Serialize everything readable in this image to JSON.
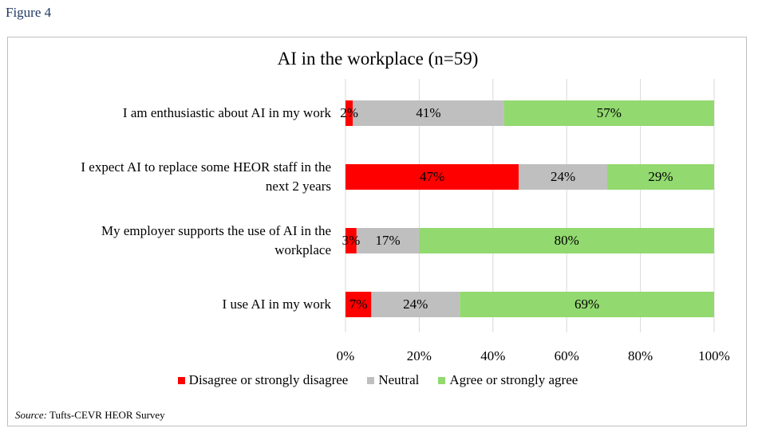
{
  "figure_label": "Figure 4",
  "source": {
    "prefix": "Source:",
    "text": " Tufts-CEVR HEOR Survey"
  },
  "chart_data": {
    "type": "bar",
    "orientation": "horizontal",
    "stacked": true,
    "title": "AI in the workplace (n=59)",
    "categories": [
      "I am enthusiastic about AI in my work",
      "I expect AI to replace some HEOR staff in the next 2 years",
      "My employer supports the use of AI in the workplace",
      "I use AI in my work"
    ],
    "category_lines": [
      [
        "I am enthusiastic about AI in my work"
      ],
      [
        "I expect AI to replace some HEOR staff in the",
        "next 2 years"
      ],
      [
        "My employer supports the use of AI in the",
        "workplace"
      ],
      [
        "I use AI in my work"
      ]
    ],
    "series": [
      {
        "name": "Disagree or strongly disagree",
        "color": "#ff0000",
        "values": [
          2,
          47,
          3,
          7
        ],
        "labels": [
          "2%",
          "47%",
          "3%",
          "7%"
        ]
      },
      {
        "name": "Neutral",
        "color": "#bfbfbf",
        "values": [
          41,
          24,
          17,
          24
        ],
        "labels": [
          "41%",
          "24%",
          "17%",
          "24%"
        ]
      },
      {
        "name": "Agree or strongly agree",
        "color": "#92d96f",
        "values": [
          57,
          29,
          80,
          69
        ],
        "labels": [
          "57%",
          "29%",
          "80%",
          "69%"
        ]
      }
    ],
    "xlim": [
      0,
      100
    ],
    "xticks": [
      0,
      20,
      40,
      60,
      80,
      100
    ],
    "xtick_labels": [
      "0%",
      "20%",
      "40%",
      "60%",
      "80%",
      "100%"
    ],
    "grid": true,
    "legend": "bottom"
  }
}
